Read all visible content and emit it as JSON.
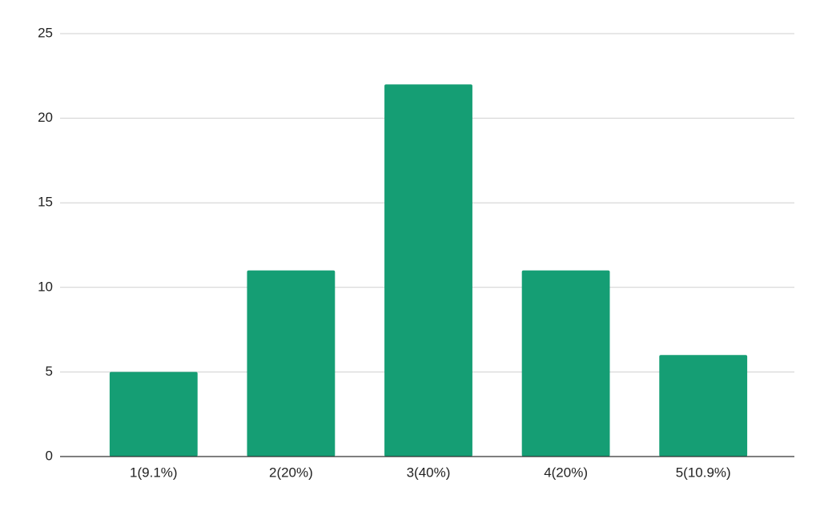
{
  "chart_data": {
    "type": "bar",
    "categories": [
      "1(9.1%)",
      "2(20%)",
      "3(40%)",
      "4(20%)",
      "5(10.9%)"
    ],
    "values": [
      5,
      11,
      22,
      11,
      6
    ],
    "color": "#159e74",
    "ylim": [
      0,
      25
    ],
    "yticks": [
      0,
      5,
      10,
      15,
      20,
      25
    ],
    "grid": true
  }
}
